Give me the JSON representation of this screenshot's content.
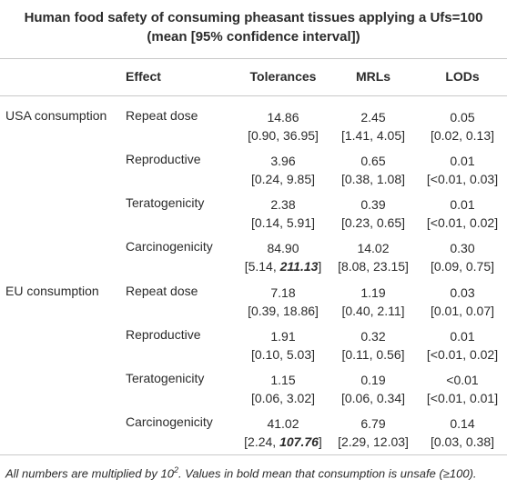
{
  "title_line1": "Human food safety of consuming pheasant tissues applying a Ufs=100",
  "title_line2": "(mean [95% confidence interval])",
  "headers": {
    "effect": "Effect",
    "tolerances": "Tolerances",
    "mrls": "MRLs",
    "lods": "LODs"
  },
  "rows": [
    {
      "group": "USA consumption",
      "effect": "Repeat dose",
      "tol": "14.86",
      "tol_ci": "[0.90, 36.95]",
      "mrl": "2.45",
      "mrl_ci": "[1.41, 4.05]",
      "lod": "0.05",
      "lod_ci": "[0.02, 0.13]"
    },
    {
      "group": "",
      "effect": "Reproductive",
      "tol": "3.96",
      "tol_ci": "[0.24, 9.85]",
      "mrl": "0.65",
      "mrl_ci": "[0.38, 1.08]",
      "lod": "0.01",
      "lod_ci": "[<0.01, 0.03]"
    },
    {
      "group": "",
      "effect": "Teratogenicity",
      "tol": "2.38",
      "tol_ci": "[0.14, 5.91]",
      "mrl": "0.39",
      "mrl_ci": "[0.23, 0.65]",
      "lod": "0.01",
      "lod_ci": "[<0.01, 0.02]"
    },
    {
      "group": "",
      "effect": "Carcinogenicity",
      "tol": "84.90",
      "tol_ci_lo": "[5.14, ",
      "tol_ci_bold": "211.13",
      "tol_ci_end": "]",
      "mrl": "14.02",
      "mrl_ci": "[8.08, 23.15]",
      "lod": "0.30",
      "lod_ci": "[0.09, 0.75]"
    },
    {
      "group": "EU consumption",
      "effect": "Repeat dose",
      "tol": "7.18",
      "tol_ci": "[0.39, 18.86]",
      "mrl": "1.19",
      "mrl_ci": "[0.40, 2.11]",
      "lod": "0.03",
      "lod_ci": "[0.01, 0.07]"
    },
    {
      "group": "",
      "effect": "Reproductive",
      "tol": "1.91",
      "tol_ci": "[0.10, 5.03]",
      "mrl": "0.32",
      "mrl_ci": "[0.11, 0.56]",
      "lod": "0.01",
      "lod_ci": "[<0.01, 0.02]"
    },
    {
      "group": "",
      "effect": "Teratogenicity",
      "tol": "1.15",
      "tol_ci": "[0.06, 3.02]",
      "mrl": "0.19",
      "mrl_ci": "[0.06, 0.34]",
      "lod": "<0.01",
      "lod_ci": "[<0.01, 0.01]"
    },
    {
      "group": "",
      "effect": "Carcinogenicity",
      "tol": "41.02",
      "tol_ci_lo": "[2.24, ",
      "tol_ci_bold": "107.76",
      "tol_ci_end": "]",
      "mrl": "6.79",
      "mrl_ci": "[2.29, 12.03]",
      "lod": "0.14",
      "lod_ci": "[0.03, 0.38]"
    }
  ],
  "footnote": {
    "part1": "All numbers are multiplied by 10",
    "sup": "2",
    "part2": ". Values in bold mean that consumption is unsafe (≥100)."
  }
}
